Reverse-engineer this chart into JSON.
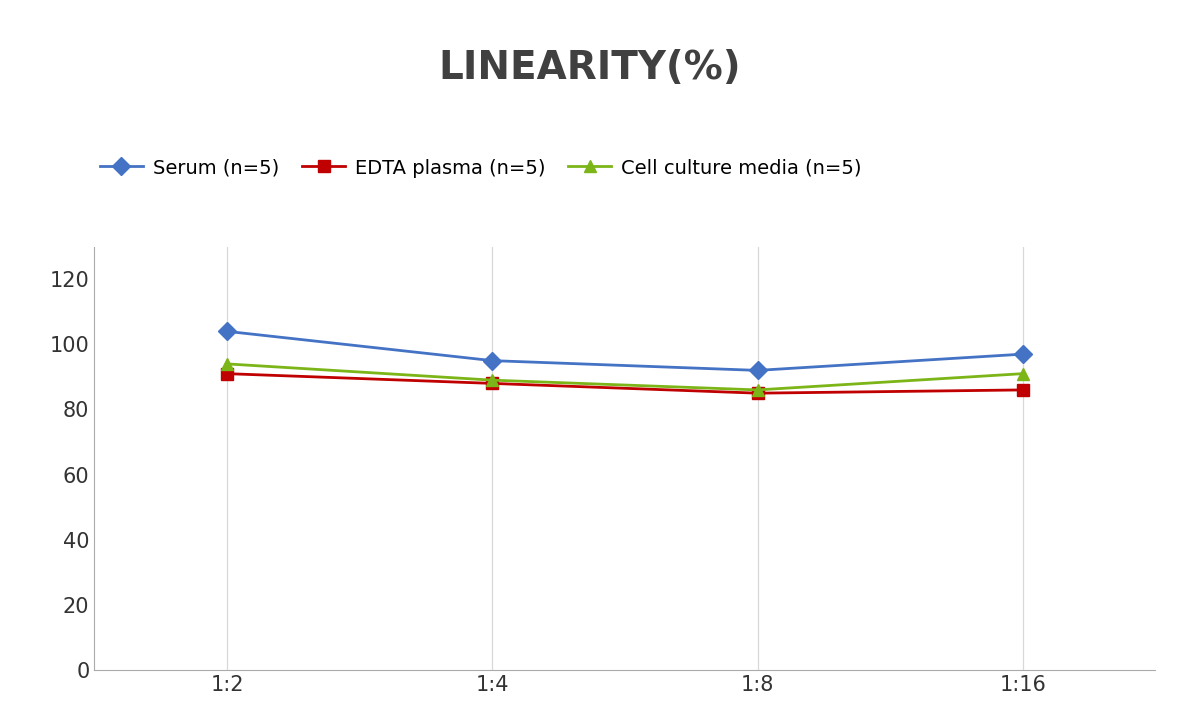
{
  "title": "LINEARITY(%)",
  "x_labels": [
    "1:2",
    "1:4",
    "1:8",
    "1:16"
  ],
  "x_positions": [
    0,
    1,
    2,
    3
  ],
  "series": [
    {
      "name": "Serum (n=5)",
      "values": [
        104,
        95,
        92,
        97
      ],
      "color": "#4472C4",
      "marker": "D",
      "linewidth": 2.0
    },
    {
      "name": "EDTA plasma (n=5)",
      "values": [
        91,
        88,
        85,
        86
      ],
      "color": "#C00000",
      "marker": "s",
      "linewidth": 2.0
    },
    {
      "name": "Cell culture media (n=5)",
      "values": [
        94,
        89,
        86,
        91
      ],
      "color": "#7CB518",
      "marker": "^",
      "linewidth": 2.0
    }
  ],
  "ylim": [
    0,
    130
  ],
  "yticks": [
    0,
    20,
    40,
    60,
    80,
    100,
    120
  ],
  "background_color": "#ffffff",
  "grid_color": "#d8d8d8",
  "title_fontsize": 28,
  "tick_fontsize": 15,
  "legend_fontsize": 14,
  "title_color": "#404040"
}
